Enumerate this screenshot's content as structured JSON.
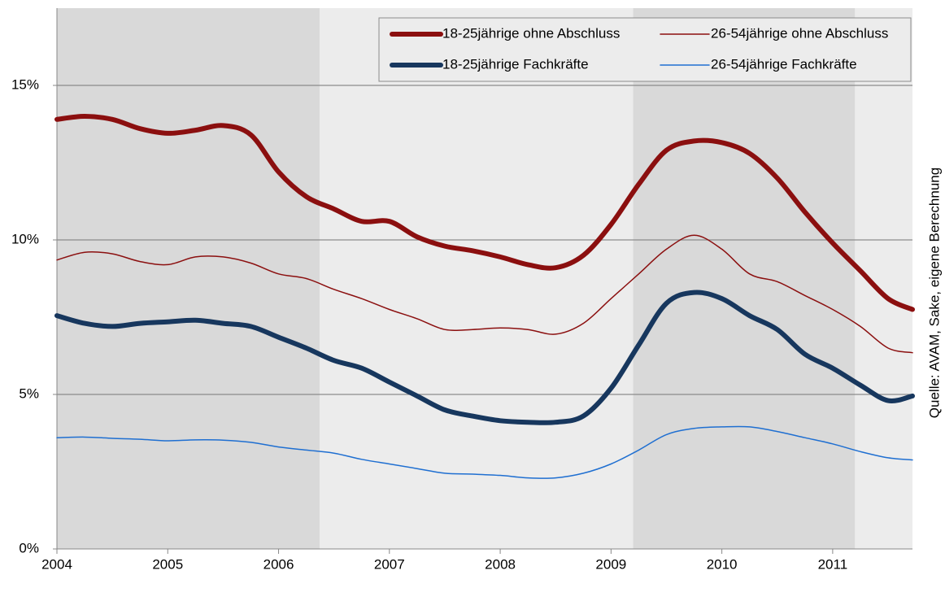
{
  "chart_data": {
    "type": "line",
    "source": "Quelle: AVAM, Sake, eigene Berechnung",
    "xlim": [
      2004,
      2011.72
    ],
    "xticks": [
      2004,
      2005,
      2006,
      2007,
      2008,
      2009,
      2010,
      2011
    ],
    "ylim": [
      0,
      17.5
    ],
    "yticks": [
      {
        "value": 0,
        "label": "0%"
      },
      {
        "value": 5,
        "label": "5%"
      },
      {
        "value": 10,
        "label": "10%"
      },
      {
        "value": 15,
        "label": "15%"
      }
    ],
    "grid": true,
    "legend": "top-right",
    "shaded_periods": [
      [
        2004,
        2006.37
      ],
      [
        2009.2,
        2011.2
      ]
    ],
    "x": [
      2004,
      2004.25,
      2004.5,
      2004.75,
      2005,
      2005.25,
      2005.5,
      2005.75,
      2006,
      2006.25,
      2006.5,
      2006.75,
      2007,
      2007.25,
      2007.5,
      2007.75,
      2008,
      2008.25,
      2008.5,
      2008.75,
      2009,
      2009.25,
      2009.5,
      2009.75,
      2010,
      2010.25,
      2010.5,
      2010.75,
      2011,
      2011.25,
      2011.5,
      2011.72
    ],
    "series": [
      {
        "name": "18-25jährige ohne Abschluss",
        "color": "#8b0f0f",
        "width": 6,
        "values": [
          13.9,
          14.0,
          13.9,
          13.6,
          13.45,
          13.55,
          13.7,
          13.4,
          12.2,
          11.4,
          11.0,
          10.6,
          10.6,
          10.1,
          9.8,
          9.65,
          9.45,
          9.2,
          9.1,
          9.5,
          10.5,
          11.8,
          12.9,
          13.2,
          13.15,
          12.8,
          12.0,
          10.9,
          9.9,
          9.0,
          8.1,
          7.75
        ]
      },
      {
        "name": "26-54jährige ohne Abschluss",
        "color": "#8b0f0f",
        "width": 1.5,
        "values": [
          9.35,
          9.6,
          9.55,
          9.3,
          9.2,
          9.45,
          9.45,
          9.25,
          8.9,
          8.75,
          8.4,
          8.1,
          7.75,
          7.45,
          7.1,
          7.1,
          7.15,
          7.1,
          6.95,
          7.3,
          8.1,
          8.9,
          9.7,
          10.15,
          9.7,
          8.9,
          8.65,
          8.2,
          7.75,
          7.2,
          6.5,
          6.35
        ]
      },
      {
        "name": "18-25jährige Fachkräfte",
        "color": "#17375e",
        "width": 6,
        "values": [
          7.55,
          7.3,
          7.2,
          7.3,
          7.35,
          7.4,
          7.3,
          7.2,
          6.85,
          6.5,
          6.1,
          5.85,
          5.4,
          4.95,
          4.5,
          4.3,
          4.15,
          4.1,
          4.1,
          4.3,
          5.2,
          6.6,
          7.95,
          8.3,
          8.1,
          7.55,
          7.1,
          6.3,
          5.85,
          5.3,
          4.8,
          4.95
        ]
      },
      {
        "name": "26-54jährige Fachkräfte",
        "color": "#1f6fd1",
        "width": 1.5,
        "values": [
          3.6,
          3.62,
          3.58,
          3.55,
          3.5,
          3.53,
          3.52,
          3.45,
          3.3,
          3.2,
          3.1,
          2.9,
          2.75,
          2.6,
          2.45,
          2.42,
          2.38,
          2.3,
          2.3,
          2.45,
          2.75,
          3.2,
          3.7,
          3.9,
          3.95,
          3.95,
          3.8,
          3.6,
          3.4,
          3.15,
          2.95,
          2.88
        ]
      }
    ]
  }
}
